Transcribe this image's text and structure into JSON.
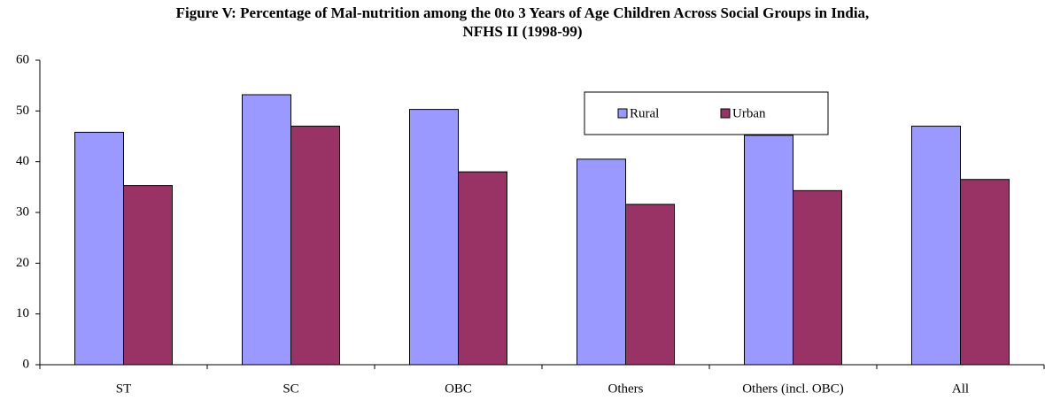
{
  "chart_data": {
    "type": "bar",
    "title": "Figure V: Percentage of Mal-nutrition among the 0to 3 Years of Age Children Across Social Groups in India, NFHS II (1998-99)",
    "categories": [
      "ST",
      "SC",
      "OBC",
      "Others",
      "Others (incl. OBC)",
      "All"
    ],
    "series": [
      {
        "name": "Rural",
        "color": "#9999ff",
        "values": [
          45.8,
          53.2,
          50.3,
          40.5,
          45.2,
          47.0
        ]
      },
      {
        "name": "Urban",
        "color": "#993366",
        "values": [
          35.3,
          47.0,
          38.0,
          31.6,
          34.3,
          36.5
        ]
      }
    ],
    "ylim": [
      0,
      60
    ],
    "yticks": [
      0,
      10,
      20,
      30,
      40,
      50,
      60
    ],
    "grid": false,
    "legend": "upper right"
  }
}
